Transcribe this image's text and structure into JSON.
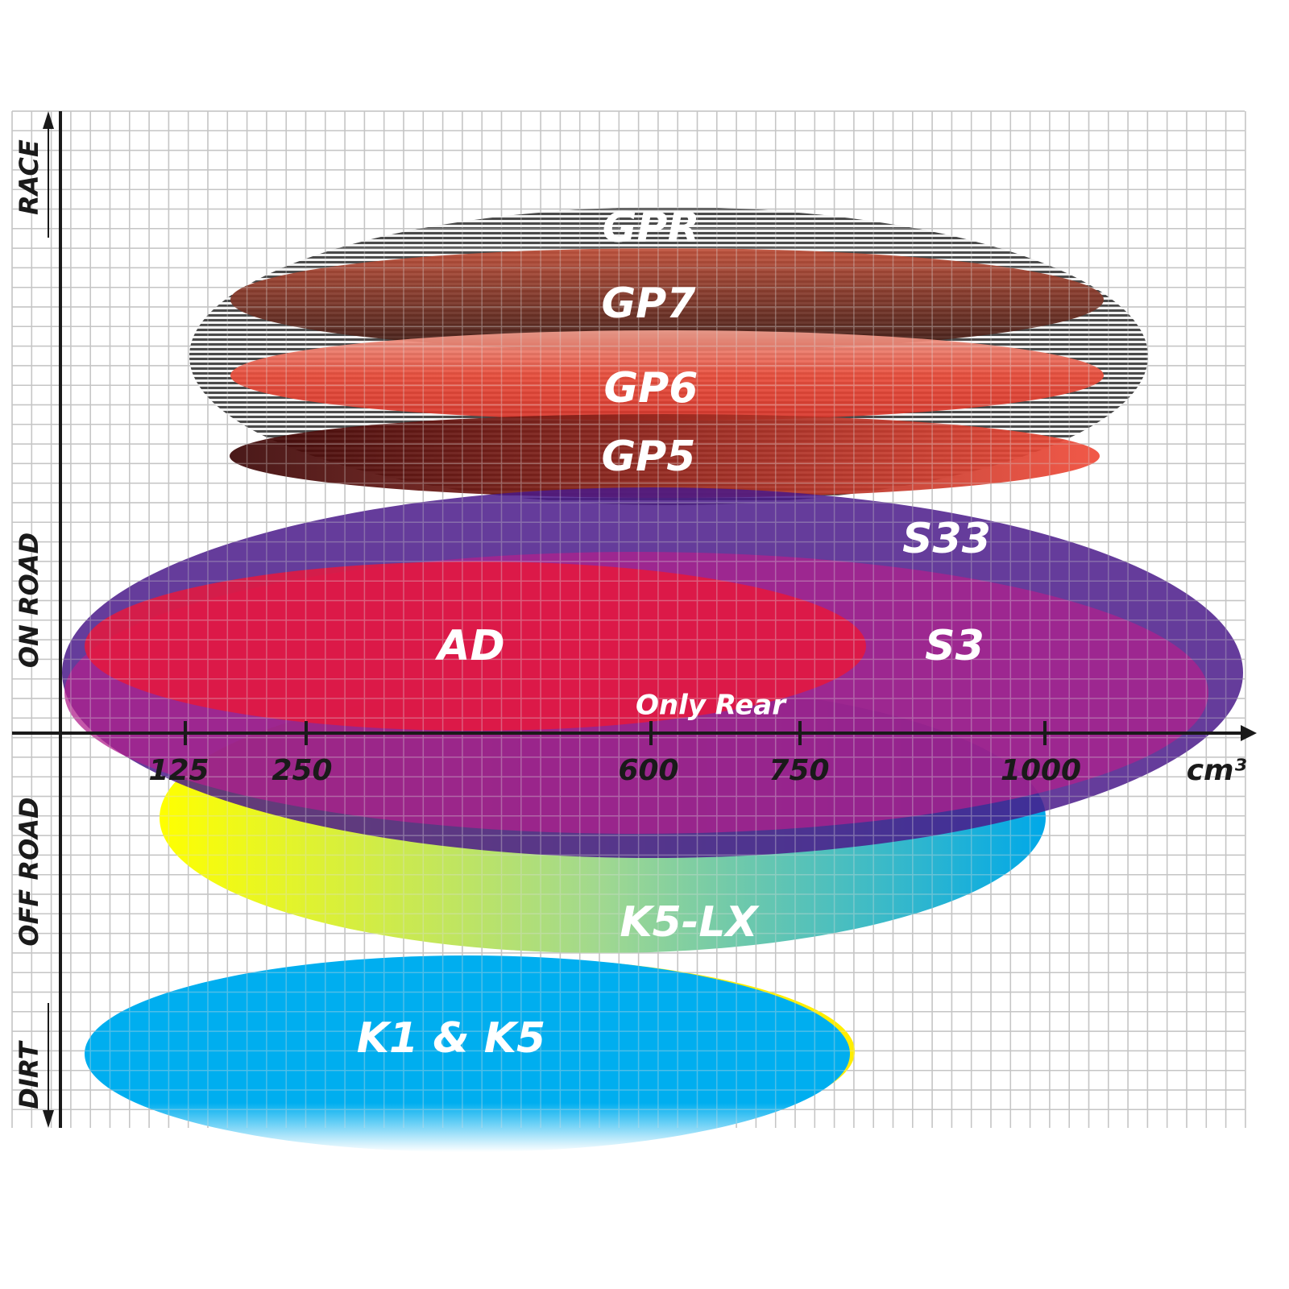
{
  "axis": {
    "y_labels": [
      "RACE",
      "ON ROAD",
      "OFF ROAD",
      "DIRT"
    ],
    "x_ticks": [
      "125",
      "250",
      "600",
      "750",
      "1000"
    ],
    "x_unit": "cm³"
  },
  "products": [
    {
      "label": "GPR"
    },
    {
      "label": "GP7"
    },
    {
      "label": "GP6"
    },
    {
      "label": "GP5"
    },
    {
      "label": "S33"
    },
    {
      "label": "S3"
    },
    {
      "label": "AD"
    },
    {
      "label": "Only Rear"
    },
    {
      "label": "K5-LX"
    },
    {
      "label": "K1 & K5"
    }
  ]
}
